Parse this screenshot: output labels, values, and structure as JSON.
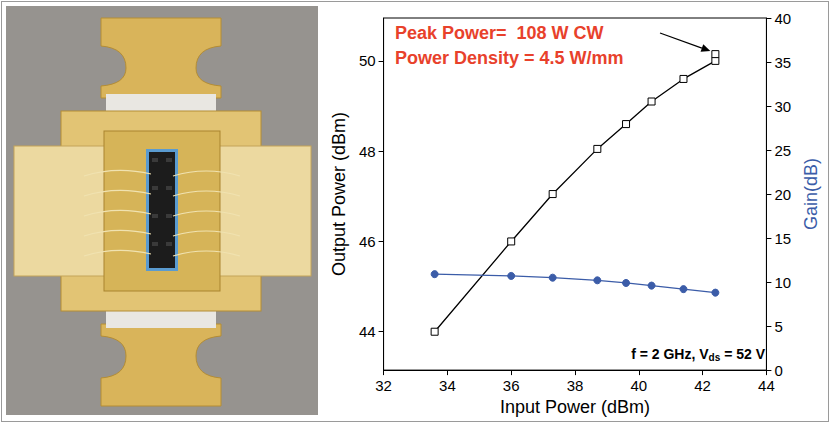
{
  "chart_data": {
    "type": "line",
    "xlabel": "Input Power (dBm)",
    "ylabel": "Output Power (dBm)",
    "y2label": "Gain(dB)",
    "xlim": [
      32,
      44
    ],
    "xticks": [
      32,
      34,
      36,
      38,
      40,
      42,
      44
    ],
    "ylim": [
      43.15,
      50.95
    ],
    "yticks": [
      44,
      46,
      48,
      50
    ],
    "y2lim": [
      0,
      40
    ],
    "y2ticks": [
      0,
      5,
      10,
      15,
      20,
      25,
      30,
      35,
      40
    ],
    "grid": false,
    "series": [
      {
        "x": [
          33.6,
          36.0,
          37.3,
          38.7,
          39.6,
          40.4,
          41.4,
          42.4,
          42.4
        ],
        "values": [
          44.0,
          46.0,
          47.05,
          48.05,
          48.6,
          49.1,
          49.6,
          50.0,
          50.15
        ],
        "color": "#000000",
        "marker": "square_open",
        "axis": "y"
      },
      {
        "x": [
          33.6,
          36.0,
          37.3,
          38.7,
          39.6,
          40.4,
          41.4,
          42.4
        ],
        "values": [
          10.9,
          10.7,
          10.5,
          10.2,
          9.9,
          9.6,
          9.2,
          8.8
        ],
        "color": "#3b5ca8",
        "marker": "circle",
        "axis": "y2"
      }
    ],
    "annotations": [
      {
        "text": "Peak Power=  108 W CW",
        "color": "#e8412b"
      },
      {
        "text": "Power Density = 4.5 W/mm",
        "color": "#e8412b"
      },
      {
        "parts": [
          {
            "text": "f = 2 GHz, V"
          },
          {
            "text": "ds",
            "sub": true
          },
          {
            "text": " = 52 V"
          }
        ],
        "color": "#000000"
      }
    ]
  }
}
